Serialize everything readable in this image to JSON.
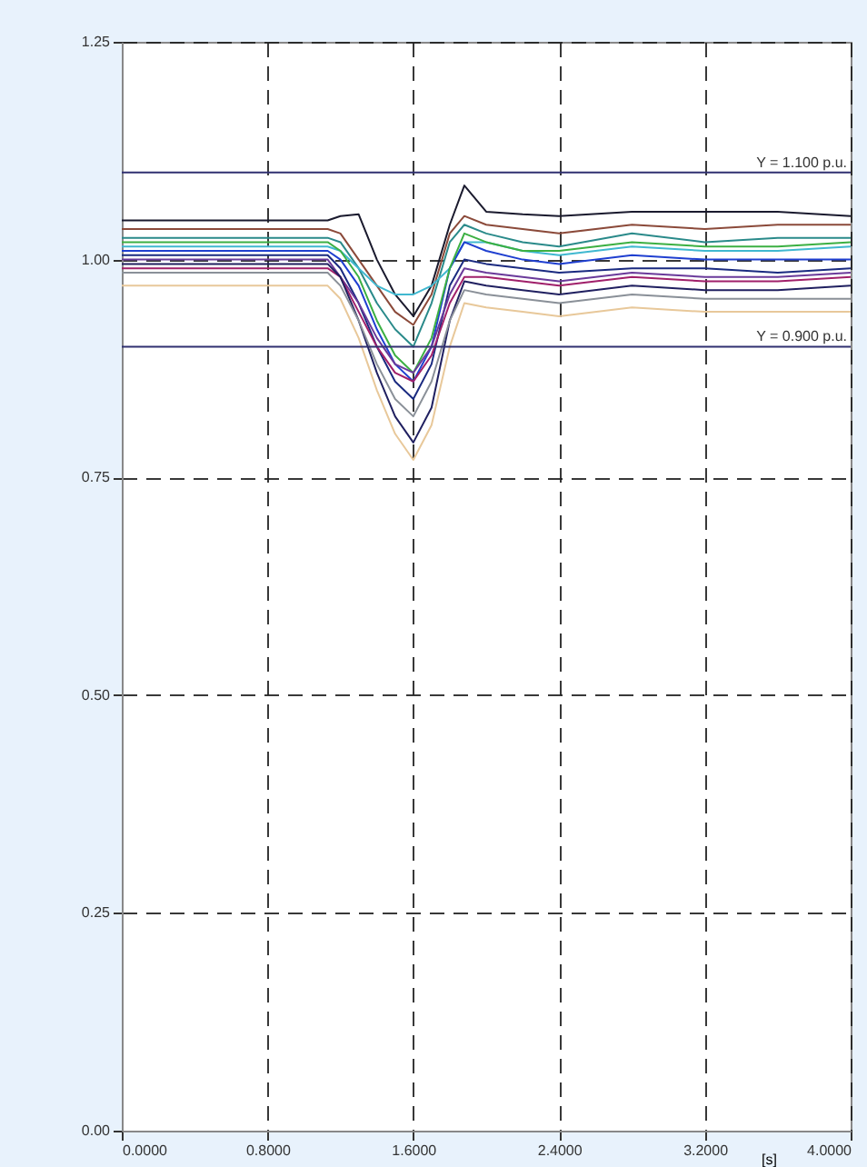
{
  "chart_data": {
    "type": "line",
    "xlabel": "[s]",
    "x": [
      0,
      1.13,
      1.2,
      1.3,
      1.4,
      1.5,
      1.6,
      1.7,
      1.8,
      1.88,
      2.0,
      2.2,
      2.4,
      2.8,
      3.2,
      3.6,
      4.0
    ],
    "series": [
      {
        "color": "#1a1a2e",
        "values": [
          1.045,
          1.045,
          1.05,
          1.052,
          1.0,
          0.96,
          0.935,
          0.97,
          1.04,
          1.085,
          1.055,
          1.052,
          1.05,
          1.055,
          1.055,
          1.055,
          1.05
        ]
      },
      {
        "color": "#8b4a3a",
        "values": [
          1.035,
          1.035,
          1.03,
          1.0,
          0.97,
          0.94,
          0.925,
          0.96,
          1.03,
          1.05,
          1.04,
          1.035,
          1.03,
          1.04,
          1.035,
          1.04,
          1.04
        ]
      },
      {
        "color": "#2a8a8a",
        "values": [
          1.025,
          1.025,
          1.02,
          0.99,
          0.95,
          0.92,
          0.9,
          0.95,
          1.02,
          1.04,
          1.03,
          1.02,
          1.015,
          1.03,
          1.02,
          1.025,
          1.025
        ]
      },
      {
        "color": "#40b8d0",
        "values": [
          1.015,
          1.015,
          1.01,
          0.99,
          0.97,
          0.96,
          0.96,
          0.97,
          0.99,
          1.02,
          1.02,
          1.01,
          1.005,
          1.015,
          1.01,
          1.01,
          1.015
        ]
      },
      {
        "color": "#1f3fd0",
        "values": [
          1.01,
          1.01,
          1.0,
          0.97,
          0.92,
          0.88,
          0.86,
          0.9,
          0.99,
          1.02,
          1.01,
          1.0,
          0.995,
          1.005,
          1.0,
          1.0,
          1.0
        ]
      },
      {
        "color": "#1a2a80",
        "values": [
          1.005,
          1.005,
          0.99,
          0.95,
          0.9,
          0.86,
          0.84,
          0.88,
          0.97,
          1.0,
          0.995,
          0.99,
          0.985,
          0.99,
          0.99,
          0.985,
          0.99
        ]
      },
      {
        "color": "#3cb043",
        "values": [
          1.02,
          1.02,
          1.01,
          0.98,
          0.93,
          0.89,
          0.87,
          0.91,
          0.99,
          1.03,
          1.02,
          1.01,
          1.01,
          1.02,
          1.015,
          1.015,
          1.02
        ]
      },
      {
        "color": "#6a3a9a",
        "values": [
          1.0,
          1.0,
          0.98,
          0.95,
          0.91,
          0.88,
          0.87,
          0.9,
          0.96,
          0.99,
          0.985,
          0.98,
          0.975,
          0.985,
          0.98,
          0.98,
          0.985
        ]
      },
      {
        "color": "#a0206a",
        "values": [
          0.99,
          0.99,
          0.98,
          0.94,
          0.9,
          0.87,
          0.86,
          0.89,
          0.95,
          0.98,
          0.98,
          0.975,
          0.97,
          0.98,
          0.975,
          0.975,
          0.98
        ]
      },
      {
        "color": "#202060",
        "values": [
          0.995,
          0.995,
          0.98,
          0.93,
          0.87,
          0.82,
          0.79,
          0.83,
          0.93,
          0.975,
          0.97,
          0.965,
          0.96,
          0.97,
          0.965,
          0.965,
          0.97
        ]
      },
      {
        "color": "#8a9098",
        "values": [
          0.985,
          0.985,
          0.97,
          0.93,
          0.88,
          0.84,
          0.82,
          0.86,
          0.93,
          0.965,
          0.96,
          0.955,
          0.95,
          0.96,
          0.955,
          0.955,
          0.955
        ]
      },
      {
        "color": "#e8c89a",
        "values": [
          0.97,
          0.97,
          0.955,
          0.91,
          0.85,
          0.8,
          0.77,
          0.81,
          0.9,
          0.95,
          0.945,
          0.94,
          0.935,
          0.945,
          0.94,
          0.94,
          0.94
        ]
      }
    ],
    "xlim": [
      0,
      4.0
    ],
    "xticks": [
      {
        "value": 0,
        "label": "0.0000"
      },
      {
        "value": 0.8,
        "label": "0.8000"
      },
      {
        "value": 1.6,
        "label": "1.6000"
      },
      {
        "value": 2.4,
        "label": "2.4000"
      },
      {
        "value": 3.2,
        "label": "3.2000"
      },
      {
        "value": 4.0,
        "label": "4.0000"
      }
    ],
    "ylim": [
      0,
      1.25
    ],
    "yticks": [
      {
        "value": 0,
        "label": "0.00"
      },
      {
        "value": 0.25,
        "label": "0.25"
      },
      {
        "value": 0.5,
        "label": "0.50"
      },
      {
        "value": 0.75,
        "label": "0.75"
      },
      {
        "value": 1.0,
        "label": "1.00"
      },
      {
        "value": 1.25,
        "label": "1.25"
      }
    ],
    "ref_lines": [
      {
        "axis": "y",
        "value": 1.1,
        "label": "Y =  1.100 p.u.",
        "color": "#303070"
      },
      {
        "axis": "y",
        "value": 0.9,
        "label": "Y =  0.900 p.u.",
        "color": "#303070"
      }
    ],
    "grid": true,
    "legend": false,
    "marker": "none",
    "line_style": "solid"
  }
}
